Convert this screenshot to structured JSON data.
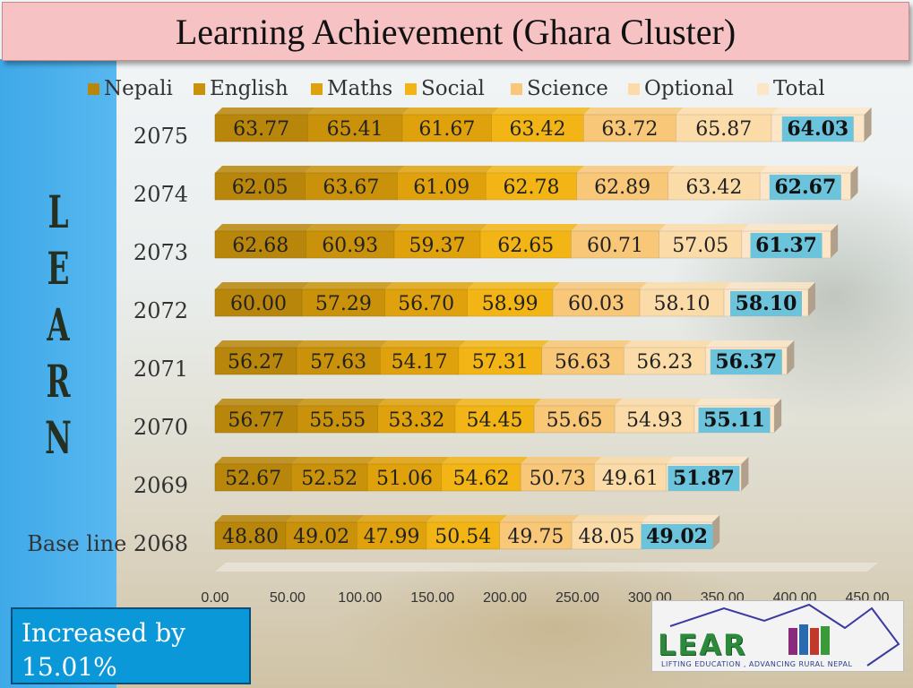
{
  "title": "Learning Achievement  (Ghara Cluster)",
  "side_word": [
    "L",
    "E",
    "A",
    "R",
    "N"
  ],
  "callout": {
    "line1": "Increased by",
    "line2": "15.01%"
  },
  "logo": {
    "word": "LEAR",
    "tagline": "LIFTING EDUCATION , ADVANCING RURAL NEPAL"
  },
  "chart_data": {
    "type": "bar",
    "orientation": "horizontal",
    "stacked": true,
    "categories": [
      "2075",
      "2074",
      "2073",
      "2072",
      "2071",
      "2070",
      "2069",
      "Base line 2068"
    ],
    "series": [
      {
        "name": "Nepali",
        "color": "#b8860b",
        "values": [
          63.77,
          62.05,
          62.68,
          60.0,
          56.27,
          56.77,
          52.67,
          48.8
        ]
      },
      {
        "name": "English",
        "color": "#c9920a",
        "values": [
          65.41,
          63.67,
          60.93,
          57.29,
          57.63,
          55.55,
          52.52,
          49.02
        ]
      },
      {
        "name": "Maths",
        "color": "#e0a20c",
        "values": [
          61.67,
          61.09,
          59.37,
          56.7,
          54.17,
          53.32,
          51.06,
          47.99
        ]
      },
      {
        "name": "Social",
        "color": "#f2b515",
        "values": [
          63.42,
          62.78,
          62.65,
          58.99,
          57.31,
          54.45,
          54.62,
          50.54
        ]
      },
      {
        "name": "Science",
        "color": "#f8c777",
        "values": [
          63.72,
          62.89,
          60.71,
          60.03,
          56.63,
          55.65,
          50.73,
          49.75
        ]
      },
      {
        "name": "Optional",
        "color": "#fbdca8",
        "values": [
          65.87,
          63.42,
          57.05,
          58.1,
          56.23,
          54.93,
          49.61,
          48.05
        ]
      },
      {
        "name": "Total",
        "color": "#fde6c8",
        "values": [
          64.03,
          62.67,
          61.37,
          58.1,
          56.37,
          55.11,
          51.87,
          49.02
        ]
      }
    ],
    "data_labels": [
      [
        "63.77",
        "65.41",
        "61.67",
        "63.42",
        "63.72",
        "65.87",
        "64.03"
      ],
      [
        "62.05",
        "63.67",
        "61.09",
        "62.78",
        "62.89",
        "63.42",
        "62.67"
      ],
      [
        "62.68",
        "60.93",
        "59.37",
        "62.65",
        "60.71",
        "57.05",
        "61.37"
      ],
      [
        "60.00",
        "57.29",
        "56.70",
        "58.99",
        "60.03",
        "58.10",
        "58.10"
      ],
      [
        "56.27",
        "57.63",
        "54.17",
        "57.31",
        "56.63",
        "56.23",
        "56.37"
      ],
      [
        "56.77",
        "55.55",
        "53.32",
        "54.45",
        "55.65",
        "54.93",
        "55.11"
      ],
      [
        "52.67",
        "52.52",
        "51.06",
        "54.62",
        "50.73",
        "49.61",
        "51.87"
      ],
      [
        "48.80",
        "49.02",
        "47.99",
        "50.54",
        "49.75",
        "48.05",
        "49.02"
      ]
    ],
    "total_label_color": "#6cc4dc",
    "xlim": [
      0,
      450
    ],
    "xticks": [
      "0.00",
      "50.00",
      "100.00",
      "150.00",
      "200.00",
      "250.00",
      "300.00",
      "350.00",
      "400.00",
      "450.00"
    ],
    "legend_position": "top"
  }
}
